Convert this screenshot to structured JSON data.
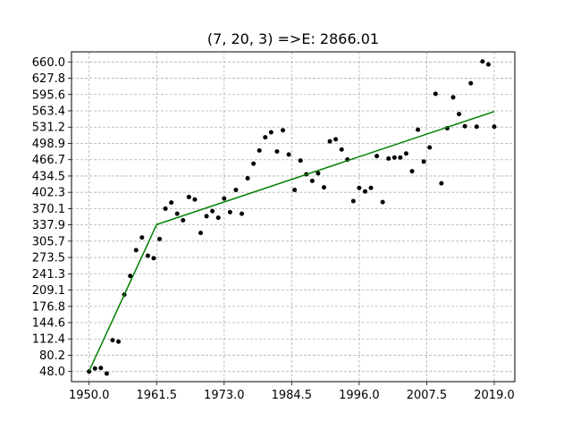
{
  "chart_data": {
    "type": "scatter",
    "title": "(7, 20, 3) =>E: 2866.01",
    "xlabel": "",
    "ylabel": "",
    "xlim": [
      1947.0,
      2022.5
    ],
    "ylim": [
      28.0,
      680.0
    ],
    "x_ticks": [
      1950.0,
      1961.5,
      1973.0,
      1984.5,
      1996.0,
      2007.5,
      2019.0
    ],
    "x_tick_labels": [
      "1950.0",
      "1961.5",
      "1973.0",
      "1984.5",
      "1996.0",
      "2007.5",
      "2019.0"
    ],
    "y_ticks": [
      48.0,
      80.2,
      112.4,
      144.6,
      176.8,
      209.1,
      241.3,
      273.5,
      305.7,
      337.9,
      370.1,
      402.3,
      434.5,
      466.7,
      498.9,
      531.2,
      563.4,
      595.6,
      627.8,
      660.0
    ],
    "y_tick_labels": [
      "48.0",
      "80.2",
      "112.4",
      "144.6",
      "176.8",
      "209.1",
      "241.3",
      "273.5",
      "305.7",
      "337.9",
      "370.1",
      "402.3",
      "434.5",
      "466.7",
      "498.9",
      "531.2",
      "563.4",
      "595.6",
      "627.8",
      "660.0"
    ],
    "grid": true,
    "series": [
      {
        "type": "scatter",
        "color": "#000000",
        "x": [
          1950,
          1951,
          1952,
          1953,
          1954,
          1955,
          1956,
          1957,
          1958,
          1959,
          1960,
          1961,
          1962,
          1963,
          1964,
          1965,
          1966,
          1967,
          1968,
          1969,
          1970,
          1971,
          1972,
          1973,
          1974,
          1975,
          1976,
          1977,
          1978,
          1979,
          1980,
          1981,
          1982,
          1983,
          1984,
          1985,
          1986,
          1987,
          1988,
          1989,
          1990,
          1991,
          1992,
          1993,
          1994,
          1995,
          1996,
          1997,
          1998,
          1999,
          2000,
          2001,
          2002,
          2003,
          2004,
          2005,
          2006,
          2007,
          2008,
          2009,
          2010,
          2011,
          2012,
          2013,
          2014,
          2015,
          2016,
          2017,
          2018,
          2019
        ],
        "y": [
          48,
          54,
          55,
          44,
          110,
          107,
          200,
          237,
          288,
          313,
          277,
          272,
          310,
          370,
          382,
          360,
          347,
          393,
          388,
          322,
          355,
          365,
          352,
          390,
          363,
          407,
          360,
          430,
          459,
          485,
          511,
          521,
          483,
          525,
          477,
          407,
          465,
          438,
          425,
          440,
          412,
          503,
          507,
          487,
          467,
          385,
          411,
          404,
          411,
          474,
          383,
          469,
          471,
          471,
          479,
          444,
          526,
          463,
          491,
          597,
          420,
          529,
          590,
          557,
          533,
          618,
          532,
          661,
          655,
          532
        ]
      },
      {
        "type": "line",
        "color": "#008000",
        "x": [
          1950.0,
          1961.5,
          2019.0
        ],
        "y": [
          49.0,
          338.5,
          562.0
        ]
      }
    ]
  }
}
